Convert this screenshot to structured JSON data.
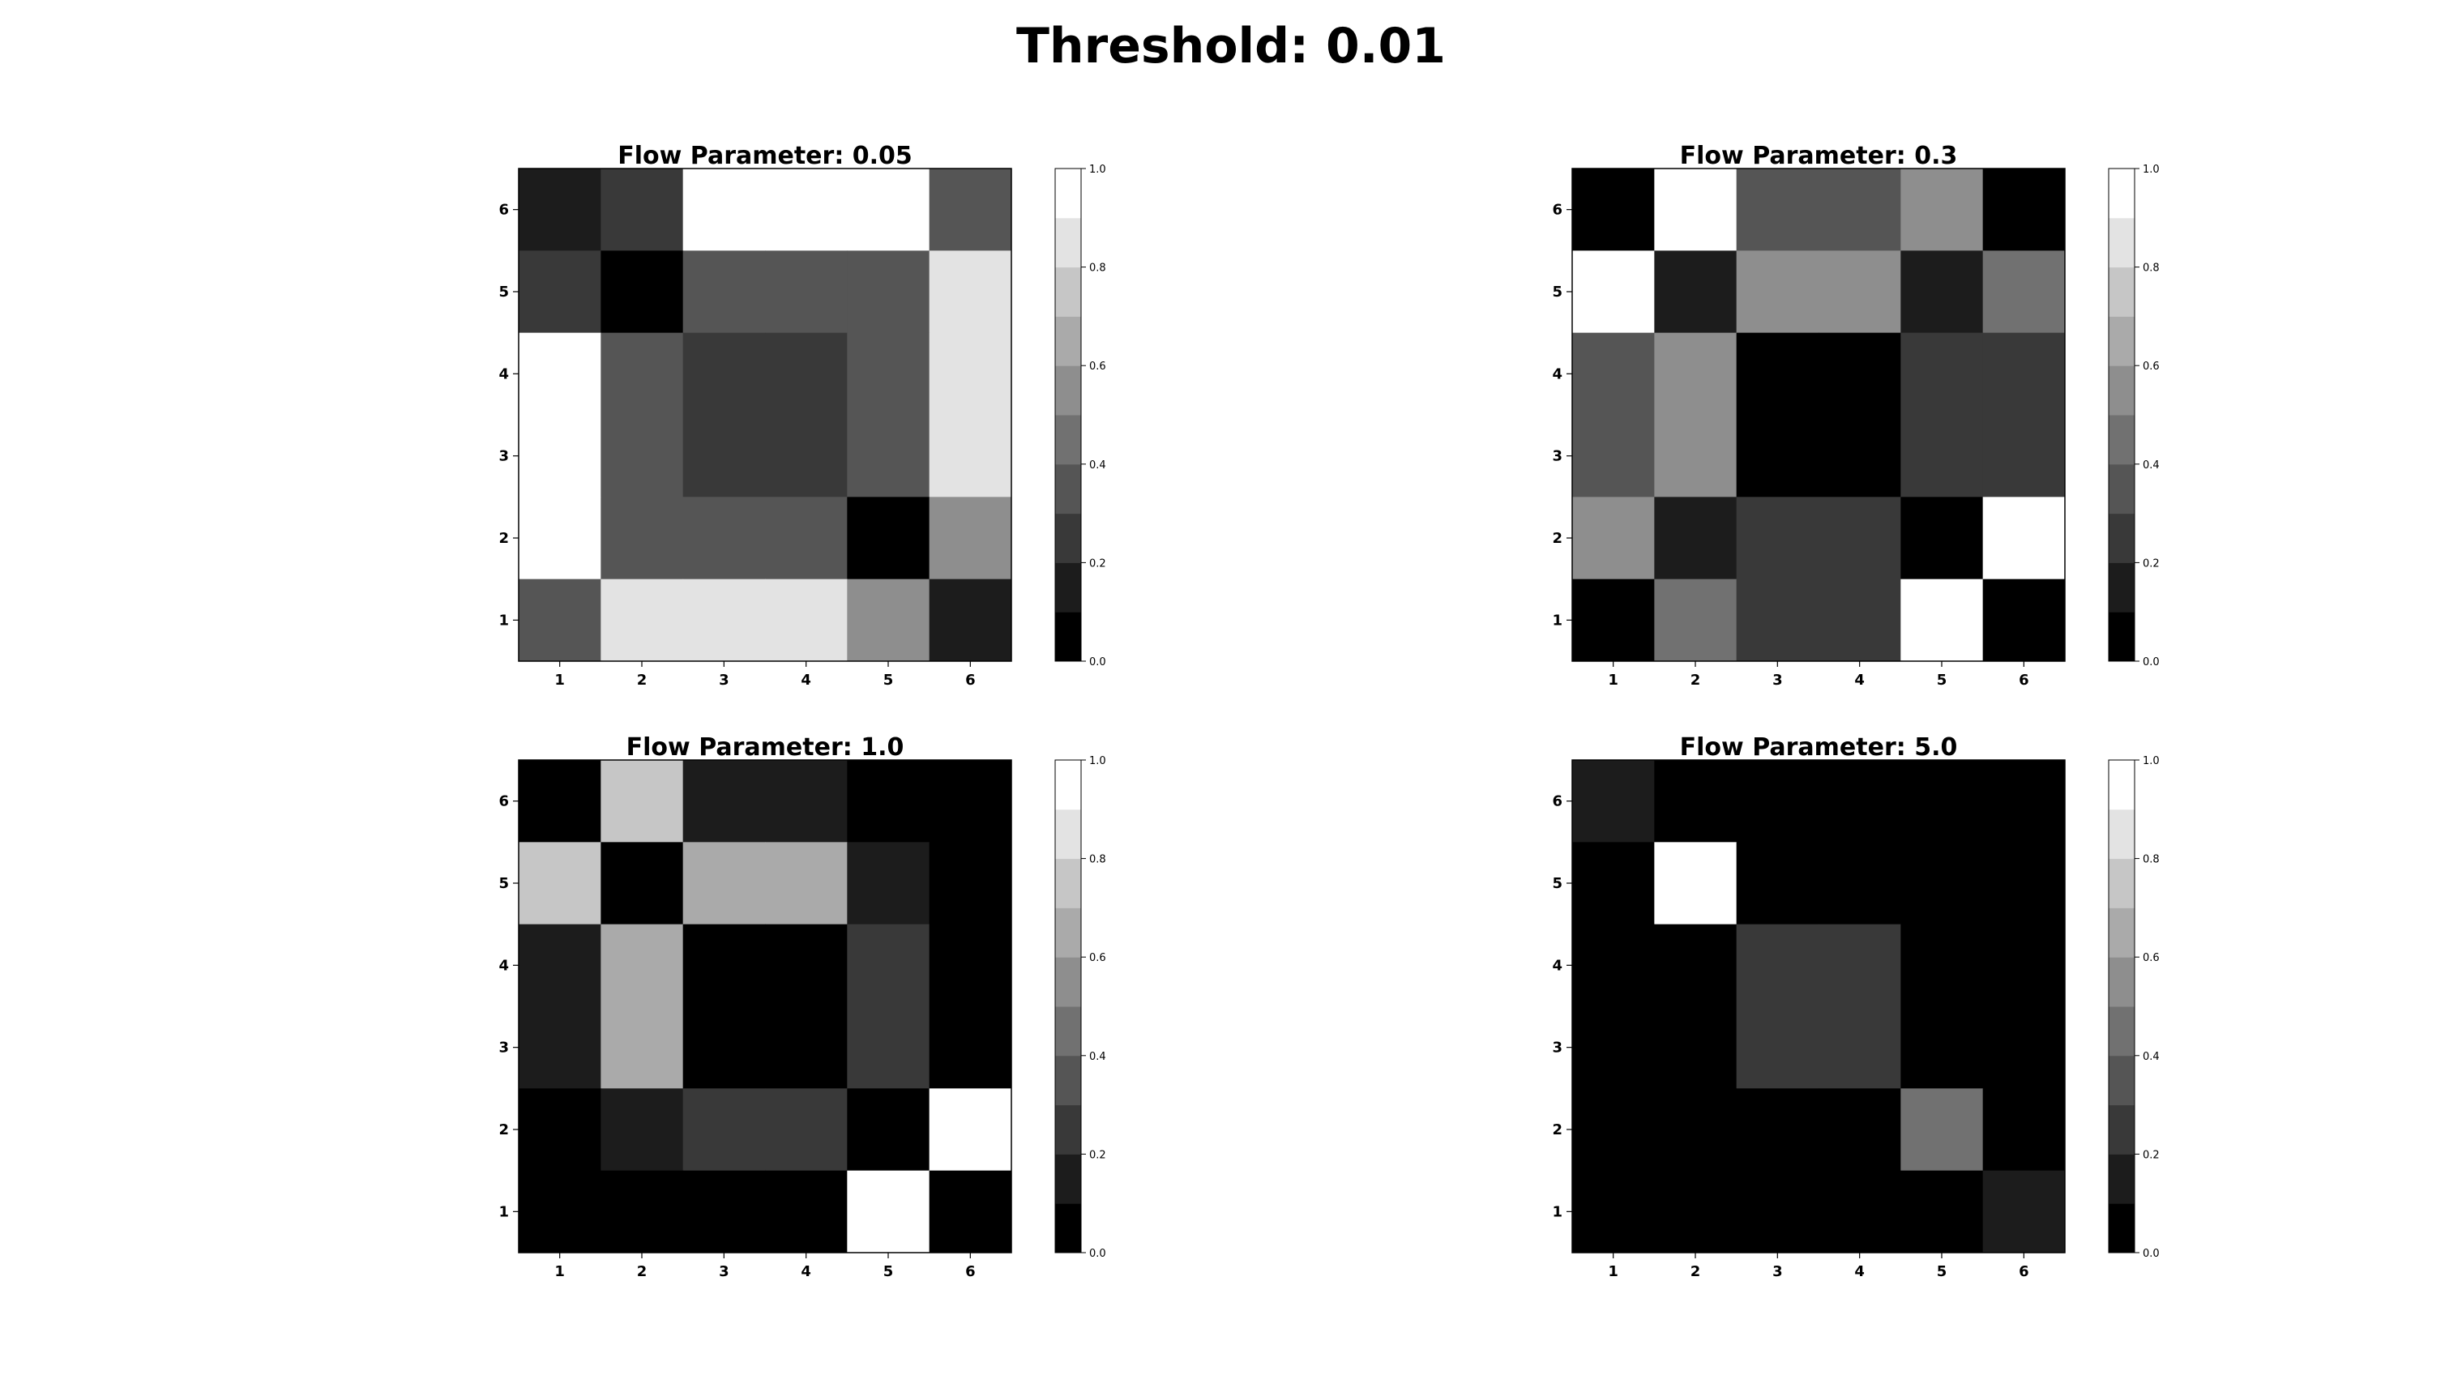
{
  "figure": {
    "suptitle": "Threshold: 0.01"
  },
  "chart_data": [
    {
      "type": "heatmap",
      "title": "Flow Parameter: 0.05",
      "x_ticks": [
        "1",
        "2",
        "3",
        "4",
        "5",
        "6"
      ],
      "y_ticks": [
        "1",
        "2",
        "3",
        "4",
        "5",
        "6"
      ],
      "colormap": "gray",
      "colorbar_ticks": [
        "0.0",
        "0.2",
        "0.4",
        "0.6",
        "0.8",
        "1.0"
      ],
      "vmin": 0.0,
      "vmax": 1.0,
      "levels": 10,
      "rows_top_to_bottom": [
        [
          0.1,
          0.2,
          1.0,
          1.0,
          1.0,
          0.3
        ],
        [
          0.2,
          0.0,
          0.3,
          0.3,
          0.3,
          0.8
        ],
        [
          1.0,
          0.3,
          0.2,
          0.2,
          0.3,
          0.8
        ],
        [
          1.0,
          0.3,
          0.2,
          0.2,
          0.3,
          0.8
        ],
        [
          1.0,
          0.3,
          0.3,
          0.3,
          0.0,
          0.5
        ],
        [
          0.3,
          0.8,
          0.8,
          0.8,
          0.5,
          0.1
        ]
      ]
    },
    {
      "type": "heatmap",
      "title": "Flow Parameter: 0.3",
      "x_ticks": [
        "1",
        "2",
        "3",
        "4",
        "5",
        "6"
      ],
      "y_ticks": [
        "1",
        "2",
        "3",
        "4",
        "5",
        "6"
      ],
      "colormap": "gray",
      "colorbar_ticks": [
        "0.0",
        "0.2",
        "0.4",
        "0.6",
        "0.8",
        "1.0"
      ],
      "vmin": 0.0,
      "vmax": 1.0,
      "levels": 10,
      "rows_top_to_bottom": [
        [
          0.0,
          1.0,
          0.3,
          0.3,
          0.5,
          0.0
        ],
        [
          1.0,
          0.1,
          0.5,
          0.5,
          0.1,
          0.4
        ],
        [
          0.3,
          0.5,
          0.0,
          0.0,
          0.2,
          0.2
        ],
        [
          0.3,
          0.5,
          0.0,
          0.0,
          0.2,
          0.2
        ],
        [
          0.5,
          0.1,
          0.2,
          0.2,
          0.0,
          1.0
        ],
        [
          0.0,
          0.4,
          0.2,
          0.2,
          1.0,
          0.0
        ]
      ]
    },
    {
      "type": "heatmap",
      "title": "Flow Parameter: 1.0",
      "x_ticks": [
        "1",
        "2",
        "3",
        "4",
        "5",
        "6"
      ],
      "y_ticks": [
        "1",
        "2",
        "3",
        "4",
        "5",
        "6"
      ],
      "colormap": "gray",
      "colorbar_ticks": [
        "0.0",
        "0.2",
        "0.4",
        "0.6",
        "0.8",
        "1.0"
      ],
      "vmin": 0.0,
      "vmax": 1.0,
      "levels": 10,
      "rows_top_to_bottom": [
        [
          0.0,
          0.7,
          0.1,
          0.1,
          0.0,
          0.0
        ],
        [
          0.7,
          0.0,
          0.6,
          0.6,
          0.1,
          0.0
        ],
        [
          0.1,
          0.6,
          0.0,
          0.0,
          0.2,
          0.0
        ],
        [
          0.1,
          0.6,
          0.0,
          0.0,
          0.2,
          0.0
        ],
        [
          0.0,
          0.1,
          0.2,
          0.2,
          0.0,
          1.0
        ],
        [
          0.0,
          0.0,
          0.0,
          0.0,
          1.0,
          0.0
        ]
      ]
    },
    {
      "type": "heatmap",
      "title": "Flow Parameter: 5.0",
      "x_ticks": [
        "1",
        "2",
        "3",
        "4",
        "5",
        "6"
      ],
      "y_ticks": [
        "1",
        "2",
        "3",
        "4",
        "5",
        "6"
      ],
      "colormap": "gray",
      "colorbar_ticks": [
        "0.0",
        "0.2",
        "0.4",
        "0.6",
        "0.8",
        "1.0"
      ],
      "vmin": 0.0,
      "vmax": 1.0,
      "levels": 10,
      "rows_top_to_bottom": [
        [
          0.1,
          0.0,
          0.0,
          0.0,
          0.0,
          0.0
        ],
        [
          0.0,
          1.0,
          0.0,
          0.0,
          0.0,
          0.0
        ],
        [
          0.0,
          0.0,
          0.2,
          0.2,
          0.0,
          0.0
        ],
        [
          0.0,
          0.0,
          0.2,
          0.2,
          0.0,
          0.0
        ],
        [
          0.0,
          0.0,
          0.0,
          0.0,
          0.4,
          0.0
        ],
        [
          0.0,
          0.0,
          0.0,
          0.0,
          0.0,
          0.1
        ]
      ]
    }
  ]
}
